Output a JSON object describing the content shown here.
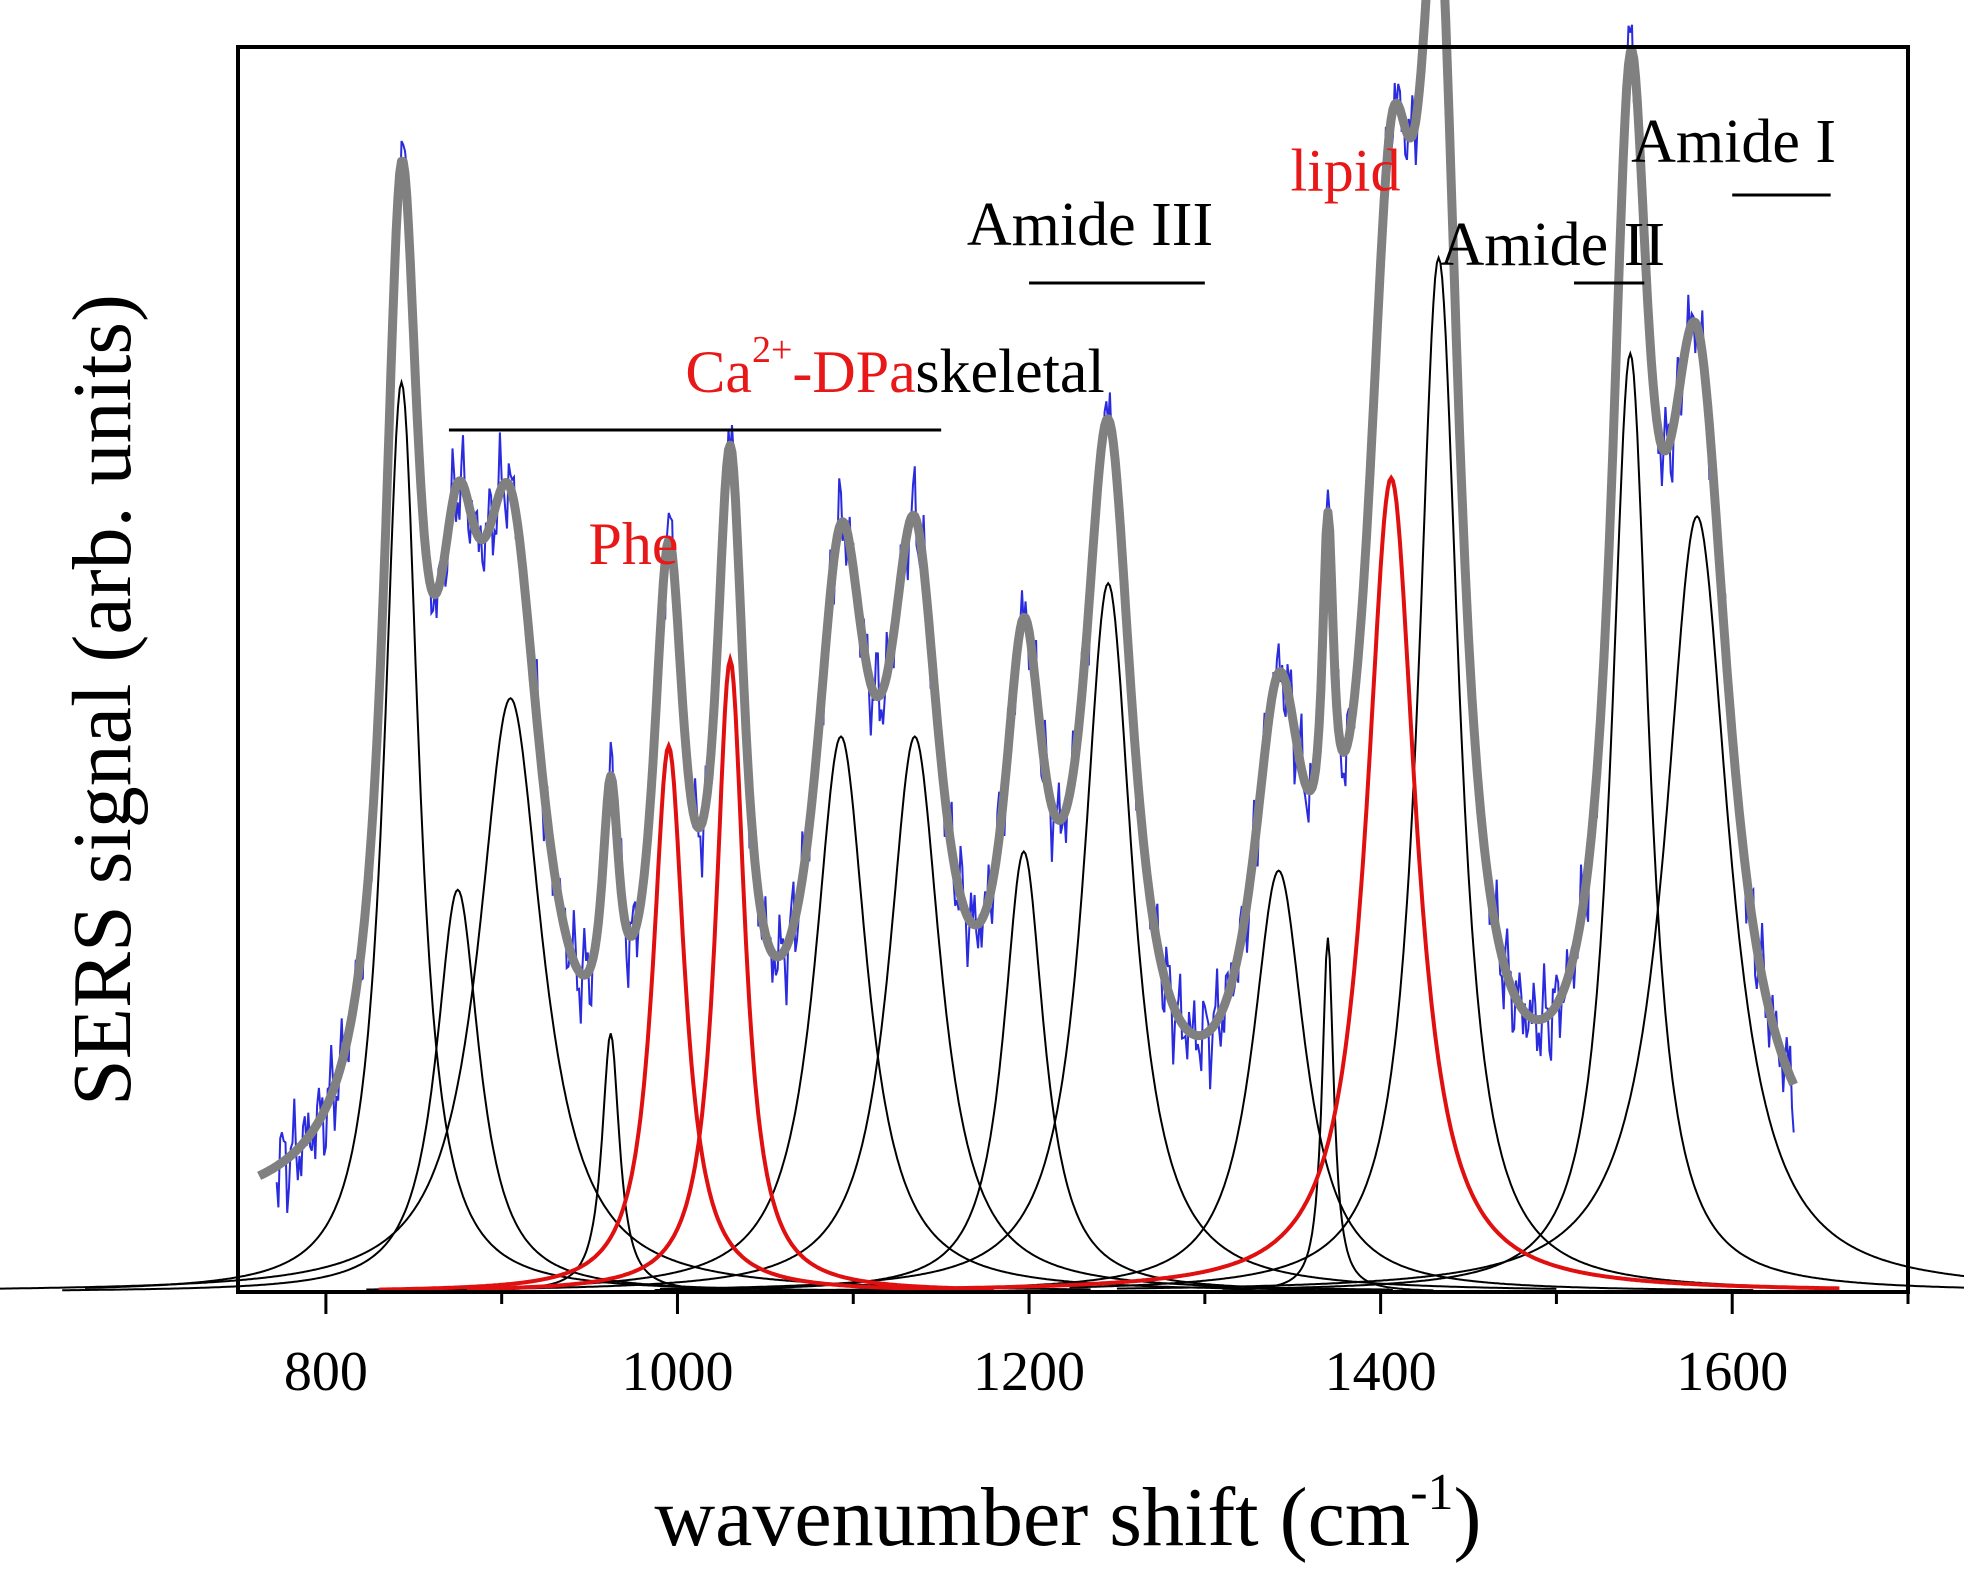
{
  "chart_data": {
    "type": "line",
    "title": "",
    "xlabel": "wavenumber shift (cm",
    "xlabel_superscript": "-1",
    "xlabel_suffix": ")",
    "ylabel": "SERS signal (arb. units)",
    "xlim": [
      750,
      1700
    ],
    "ylim": [
      0,
      1.3
    ],
    "x_ticks": [
      800,
      1000,
      1200,
      1400,
      1600
    ],
    "y_ticks_shown": false,
    "grid": false,
    "x_range_spectrum": [
      762,
      1635
    ],
    "baseline": 0.07,
    "colors": {
      "raw": "#2a2adf",
      "fit": "#808080",
      "component": "#000000",
      "highlight": "#e01010",
      "label_highlight": "#e81818"
    },
    "components": [
      {
        "center": 843,
        "amp": 0.95,
        "width": 12,
        "highlight": false
      },
      {
        "center": 875,
        "amp": 0.42,
        "width": 15,
        "highlight": false
      },
      {
        "center": 905,
        "amp": 0.62,
        "width": 22,
        "highlight": false
      },
      {
        "center": 962,
        "amp": 0.27,
        "width": 6,
        "highlight": false
      },
      {
        "center": 995,
        "amp": 0.57,
        "width": 11,
        "highlight": true,
        "label": "Phe"
      },
      {
        "center": 1030,
        "amp": 0.66,
        "width": 10,
        "highlight": true,
        "label": "Ca2+-DPa"
      },
      {
        "center": 1093,
        "amp": 0.58,
        "width": 18,
        "highlight": false
      },
      {
        "center": 1135,
        "amp": 0.58,
        "width": 18,
        "highlight": false
      },
      {
        "center": 1197,
        "amp": 0.46,
        "width": 14,
        "highlight": false
      },
      {
        "center": 1245,
        "amp": 0.74,
        "width": 17,
        "highlight": false
      },
      {
        "center": 1342,
        "amp": 0.44,
        "width": 18,
        "highlight": false
      },
      {
        "center": 1370,
        "amp": 0.37,
        "width": 4,
        "highlight": false
      },
      {
        "center": 1406,
        "amp": 0.85,
        "width": 17,
        "highlight": true,
        "label": "lipid"
      },
      {
        "center": 1433,
        "amp": 1.08,
        "width": 14,
        "highlight": false
      },
      {
        "center": 1542,
        "amp": 0.98,
        "width": 13,
        "highlight": false
      },
      {
        "center": 1580,
        "amp": 0.81,
        "width": 22,
        "highlight": false
      }
    ],
    "annotations": [
      {
        "text": "skeletal",
        "range": [
          870,
          1150
        ]
      },
      {
        "text": "Amide III",
        "range": [
          1200,
          1300
        ]
      },
      {
        "text": "Amide II",
        "range": [
          1510,
          1550
        ]
      },
      {
        "text": "Amide I",
        "range": [
          1600,
          1656
        ]
      }
    ],
    "peak_labels": [
      {
        "text": "Phe",
        "x": 975,
        "y": 0.76,
        "color": "#e81818"
      },
      {
        "text": "Ca",
        "sup": "2+",
        "suffix": "-DPa",
        "x": 1070,
        "y": 0.94,
        "color": "#e81818"
      },
      {
        "text": "lipid",
        "x": 1380,
        "y": 1.15,
        "color": "#e81818"
      }
    ]
  }
}
